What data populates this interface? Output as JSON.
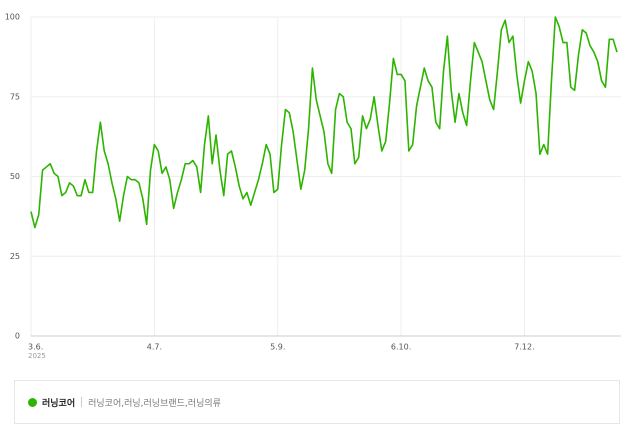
{
  "chart_data": {
    "type": "line",
    "categories": [
      "3.6.",
      null,
      null,
      null,
      null,
      null,
      null,
      null,
      null,
      null,
      null,
      null,
      null,
      null,
      null,
      null,
      null,
      null,
      null,
      null,
      null,
      null,
      null,
      null,
      null,
      null,
      null,
      null,
      null,
      null,
      null,
      null,
      "4.7.",
      null,
      null,
      null,
      null,
      null,
      null,
      null,
      null,
      null,
      null,
      null,
      null,
      null,
      null,
      null,
      null,
      null,
      null,
      null,
      null,
      null,
      null,
      null,
      null,
      null,
      null,
      null,
      null,
      null,
      null,
      null,
      "5.9.",
      null,
      null,
      null,
      null,
      null,
      null,
      null,
      null,
      null,
      null,
      null,
      null,
      null,
      null,
      null,
      null,
      null,
      null,
      null,
      null,
      null,
      null,
      null,
      null,
      null,
      null,
      null,
      null,
      null,
      null,
      null,
      "6.10.",
      null,
      null,
      null,
      null,
      null,
      null,
      null,
      null,
      null,
      null,
      null,
      null,
      null,
      null,
      null,
      null,
      null,
      null,
      null,
      null,
      null,
      null,
      null,
      null,
      null,
      null,
      null,
      null,
      null,
      null,
      null,
      "7.12.",
      null,
      null,
      null,
      null,
      null,
      null,
      null,
      null,
      null,
      null,
      null,
      null,
      null,
      null,
      null,
      null,
      null,
      null,
      null,
      null,
      null,
      null,
      null,
      null
    ],
    "x_sublabel": "2025",
    "series": [
      {
        "name": "러닝코어",
        "color": "#2db400",
        "keywords": "러닝코어,러닝,러닝브랜드,러닝의류",
        "values": [
          39,
          34,
          38,
          52,
          53,
          54,
          51,
          50,
          44,
          45,
          48,
          47,
          44,
          44,
          49,
          45,
          45,
          58,
          67,
          58,
          54,
          48,
          43,
          36,
          44,
          50,
          49,
          49,
          48,
          43,
          35,
          52,
          60,
          58,
          51,
          53,
          49,
          40,
          45,
          49,
          54,
          54,
          55,
          53,
          45,
          60,
          69,
          54,
          63,
          52,
          44,
          57,
          58,
          53,
          47,
          43,
          45,
          41,
          45,
          49,
          54,
          60,
          57,
          45,
          46,
          60,
          71,
          70,
          64,
          55,
          46,
          52,
          65,
          84,
          74,
          69,
          64,
          54,
          51,
          71,
          76,
          75,
          67,
          65,
          54,
          56,
          69,
          65,
          68,
          75,
          66,
          58,
          61,
          73,
          87,
          82,
          82,
          80,
          58,
          60,
          72,
          78,
          84,
          80,
          78,
          67,
          65,
          83,
          94,
          77,
          67,
          76,
          70,
          66,
          80,
          92,
          89,
          86,
          80,
          74,
          71,
          83,
          96,
          99,
          92,
          94,
          82,
          73,
          80,
          86,
          83,
          76,
          57,
          60,
          57,
          80,
          100,
          97,
          92,
          92,
          78,
          77,
          88,
          96,
          95,
          91,
          89,
          86,
          80,
          78,
          93,
          93,
          89
        ]
      }
    ],
    "ylim": [
      0,
      100
    ],
    "yticks": [
      0,
      25,
      50,
      75,
      100
    ],
    "grid": true
  }
}
